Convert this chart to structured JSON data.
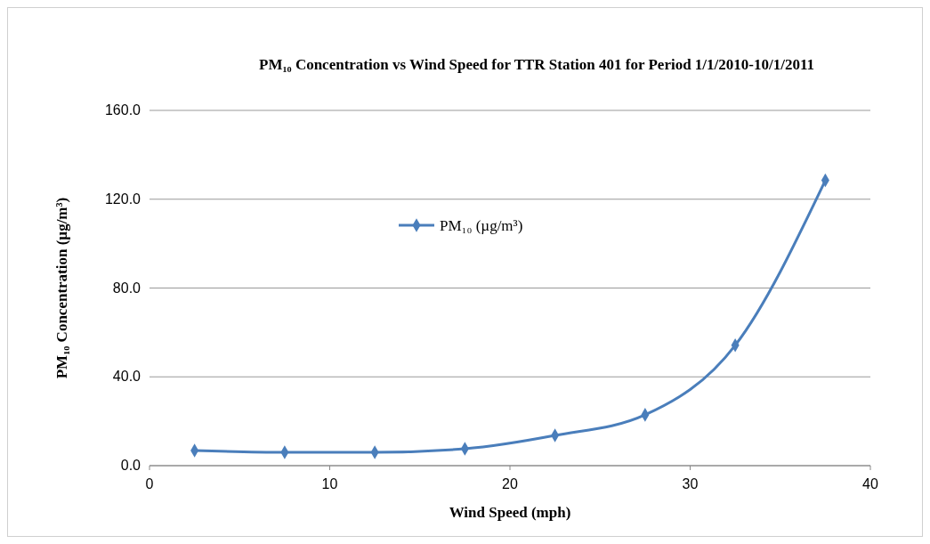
{
  "chart_data": {
    "type": "line",
    "title": "PM₁₀ Concentration vs Wind Speed for TTR Station 401 for Period 1/1/2010-10/1/2011",
    "xlabel": "Wind Speed (mph)",
    "ylabel": "PM₁₀ Concentration (µg/m³)",
    "x": [
      2.5,
      7.5,
      12.5,
      17.5,
      22.5,
      27.5,
      32.5,
      37.5
    ],
    "series": [
      {
        "name": "PM₁₀ (µg/m³)",
        "color": "#4a7ebb",
        "values": [
          6.8,
          6.0,
          6.0,
          7.6,
          13.6,
          22.9,
          54.2,
          128.5
        ]
      }
    ],
    "xlim": [
      0,
      40
    ],
    "xticks": [
      0,
      10,
      20,
      30,
      40
    ],
    "ylim": [
      0,
      160
    ],
    "yticks": [
      {
        "value": 0,
        "label": "0.0"
      },
      {
        "value": 40,
        "label": "40.0"
      },
      {
        "value": 80,
        "label": "80.0"
      },
      {
        "value": 120,
        "label": "120.0"
      },
      {
        "value": 160,
        "label": "160.0"
      }
    ],
    "grid": "y",
    "legend": "top",
    "marker": "diamond",
    "line_style": "solid"
  }
}
